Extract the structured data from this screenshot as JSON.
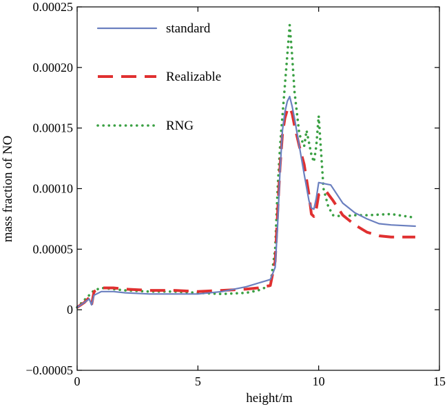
{
  "chart_data": {
    "type": "line",
    "title": "",
    "xlabel": "height/m",
    "ylabel": "mass fraction of NO",
    "xlim": [
      0,
      15
    ],
    "ylim": [
      -5e-05,
      0.00025
    ],
    "x_ticks": [
      0,
      5,
      10,
      15
    ],
    "x_tick_labels": [
      "0",
      "5",
      "10",
      "15"
    ],
    "y_ticks": [
      -5e-05,
      0,
      5e-05,
      0.0001,
      0.00015,
      0.0002,
      0.00025
    ],
    "y_tick_labels": [
      "−0.00005",
      "0",
      "0.00005",
      "0.00010",
      "0.00015",
      "0.00020",
      "0.00025"
    ],
    "grid": false,
    "legend_position": "top-left",
    "series": [
      {
        "name": "standard",
        "style": "solid",
        "color": "#6a7fbf",
        "x": [
          0,
          0.3,
          0.5,
          0.6,
          0.7,
          1.0,
          1.5,
          2.0,
          3.0,
          4.0,
          5.0,
          6.0,
          7.0,
          7.5,
          8.0,
          8.2,
          8.3,
          8.4,
          8.5,
          8.6,
          8.7,
          8.8,
          8.9,
          9.0,
          9.2,
          9.4,
          9.6,
          9.7,
          9.8,
          9.9,
          10.0,
          10.5,
          11.0,
          11.5,
          12.0,
          12.5,
          13.0,
          14.0
        ],
        "y": [
          2e-06,
          6e-06,
          9e-06,
          4e-06,
          1.2e-05,
          1.5e-05,
          1.5e-05,
          1.4e-05,
          1.3e-05,
          1.3e-05,
          1.3e-05,
          1.5e-05,
          1.9e-05,
          2.2e-05,
          2.5e-05,
          3.5e-05,
          7e-05,
          0.000115,
          0.000148,
          0.000163,
          0.000172,
          0.000176,
          0.000168,
          0.000158,
          0.000135,
          0.000112,
          9e-05,
          8.4e-05,
          8.3e-05,
          9.2e-05,
          0.000105,
          0.000103,
          8.8e-05,
          8e-05,
          7.5e-05,
          7.1e-05,
          7e-05,
          6.9e-05
        ]
      },
      {
        "name": "Realizable",
        "style": "dashed",
        "color": "#e03030",
        "x": [
          0,
          0.3,
          0.5,
          0.6,
          0.7,
          1.0,
          1.5,
          2.0,
          3.0,
          4.0,
          5.0,
          6.0,
          7.0,
          7.5,
          8.0,
          8.2,
          8.3,
          8.4,
          8.5,
          8.6,
          8.7,
          8.8,
          8.9,
          9.0,
          9.2,
          9.4,
          9.6,
          9.7,
          9.8,
          9.9,
          10.0,
          10.3,
          10.6,
          11.0,
          11.5,
          12.0,
          12.5,
          13.0,
          14.0
        ],
        "y": [
          2e-06,
          6e-06,
          1e-05,
          4e-06,
          1.5e-05,
          1.8e-05,
          1.8e-05,
          1.7e-05,
          1.6e-05,
          1.6e-05,
          1.5e-05,
          1.6e-05,
          1.7e-05,
          1.8e-05,
          2e-05,
          4e-05,
          8e-05,
          0.000118,
          0.000145,
          0.000158,
          0.000165,
          0.000167,
          0.000162,
          0.000152,
          0.000135,
          0.00012,
          9.5e-05,
          7.9e-05,
          7.7e-05,
          8.3e-05,
          9.5e-05,
          9.8e-05,
          9e-05,
          7.8e-05,
          7e-05,
          6.4e-05,
          6.1e-05,
          6e-05,
          6e-05
        ]
      },
      {
        "name": "RNG",
        "style": "dotted",
        "color": "#3aa043",
        "x": [
          0,
          0.3,
          0.5,
          0.7,
          1.0,
          1.5,
          2.0,
          3.0,
          4.0,
          5.0,
          6.0,
          7.0,
          7.5,
          8.0,
          8.2,
          8.3,
          8.4,
          8.5,
          8.6,
          8.7,
          8.8,
          8.9,
          9.0,
          9.2,
          9.4,
          9.5,
          9.6,
          9.7,
          9.8,
          9.9,
          10.0,
          10.1,
          10.2,
          10.4,
          10.6,
          11.0,
          11.5,
          12.0,
          13.0,
          14.0
        ],
        "y": [
          2e-06,
          8e-06,
          1.2e-05,
          1.6e-05,
          1.8e-05,
          1.7e-05,
          1.6e-05,
          1.5e-05,
          1.5e-05,
          1.4e-05,
          1.3e-05,
          1.4e-05,
          1.6e-05,
          2e-05,
          5e-05,
          0.0001,
          0.000135,
          0.00016,
          0.000185,
          0.00021,
          0.000235,
          0.00021,
          0.00018,
          0.000145,
          0.000135,
          0.000148,
          0.000138,
          0.000128,
          0.000122,
          0.000135,
          0.00016,
          0.00013,
          0.0001,
          8.5e-05,
          7.8e-05,
          7.7e-05,
          7.8e-05,
          7.8e-05,
          7.9e-05,
          7.6e-05
        ]
      }
    ]
  }
}
